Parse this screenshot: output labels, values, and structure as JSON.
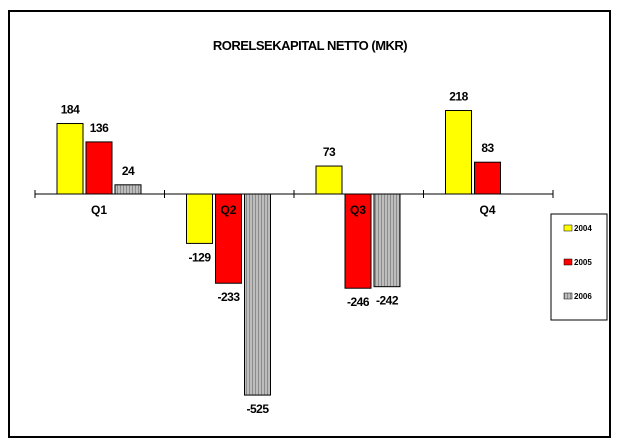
{
  "chart_data": {
    "type": "bar",
    "title": "RORELSEKAPITAL NETTO (MKR)",
    "categories": [
      "Q1",
      "Q2",
      "Q3",
      "Q4"
    ],
    "series": [
      {
        "name": "2004",
        "color": "#ffff00",
        "values": [
          184,
          -129,
          73,
          218
        ]
      },
      {
        "name": "2005",
        "color": "#ff0000",
        "values": [
          136,
          -233,
          -246,
          83
        ]
      },
      {
        "name": "2006",
        "color": "#b4b4b4",
        "values": [
          24,
          -525,
          -242,
          null
        ]
      }
    ],
    "data_labels": [
      [
        "184",
        "136",
        "24"
      ],
      [
        "-129",
        "-233",
        "-525"
      ],
      [
        "73",
        "-246",
        "-242"
      ],
      [
        "218",
        "83",
        ""
      ]
    ],
    "ylim": [
      -560,
      250
    ],
    "grid": false,
    "legend": "right",
    "xlabel": "",
    "ylabel": ""
  }
}
